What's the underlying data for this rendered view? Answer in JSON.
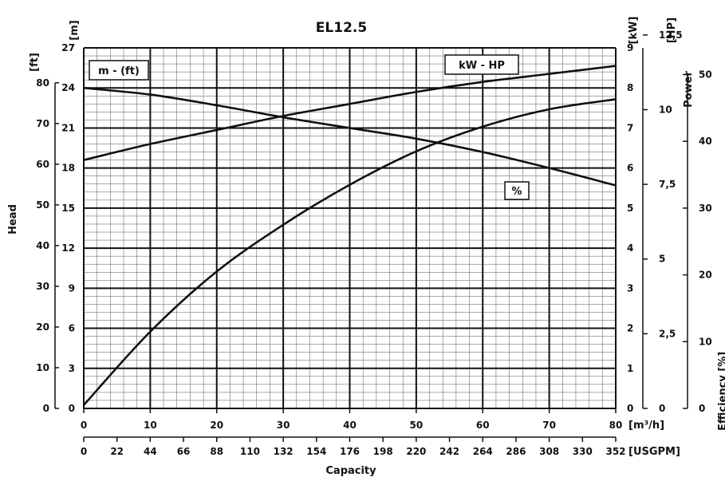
{
  "chart_data": {
    "type": "line",
    "title": "EL12.5",
    "x_axis": {
      "label": "Capacity",
      "unit_primary": "[m³/h]",
      "unit_secondary": "[USGPM]",
      "range_m3h": [
        0,
        80
      ],
      "ticks_m3h": [
        "0",
        "10",
        "20",
        "30",
        "40",
        "50",
        "60",
        "70",
        "80"
      ],
      "ticks_usgpm": [
        "0",
        "22",
        "44",
        "66",
        "88",
        "110",
        "132",
        "154",
        "176",
        "198",
        "220",
        "242",
        "264",
        "286",
        "308",
        "330",
        "352"
      ]
    },
    "y_left": {
      "label": "Head",
      "unit_m": "[m]",
      "unit_ft": "[ft]",
      "range_m": [
        0,
        27
      ],
      "ticks_m": [
        "0",
        "3",
        "6",
        "9",
        "12",
        "15",
        "18",
        "21",
        "24",
        "27"
      ],
      "ticks_ft": [
        "0",
        "10",
        "20",
        "30",
        "40",
        "50",
        "60",
        "70",
        "80"
      ]
    },
    "y_right_power": {
      "label": "Power",
      "unit_kw": "[kW]",
      "unit_hp": "[HP]",
      "range_kw": [
        0,
        9
      ],
      "ticks_kw": [
        "0",
        "1",
        "2",
        "3",
        "4",
        "5",
        "6",
        "7",
        "8",
        "9"
      ],
      "ticks_hp": [
        "0",
        "2,5",
        "5",
        "7,5",
        "10",
        "12,5"
      ]
    },
    "y_right_efficiency": {
      "label": "Efficiency [%]",
      "ticks": [
        "0",
        "10",
        "20",
        "30",
        "40",
        "50"
      ]
    },
    "curve_labels": {
      "head": "m - (ft)",
      "power": "kW - HP",
      "efficiency": "%"
    },
    "series": [
      {
        "name": "m - (ft)",
        "x": [
          0,
          10,
          20,
          30,
          40,
          50,
          60,
          70,
          80
        ],
        "y": [
          24,
          23.5,
          22.7,
          21.8,
          21.0,
          20.2,
          19.2,
          18.0,
          16.7
        ]
      },
      {
        "name": "kW - HP",
        "x": [
          0,
          10,
          20,
          30,
          40,
          50,
          60,
          70,
          80
        ],
        "y": [
          6.2,
          6.6,
          6.95,
          7.3,
          7.6,
          7.9,
          8.15,
          8.35,
          8.55
        ]
      },
      {
        "name": "%",
        "x": [
          0,
          10,
          20,
          30,
          40,
          50,
          60,
          70,
          80
        ],
        "y": [
          0.5,
          11.5,
          20.5,
          27.5,
          33.5,
          38.5,
          42.2,
          44.8,
          46.3
        ]
      }
    ],
    "grid": true
  }
}
